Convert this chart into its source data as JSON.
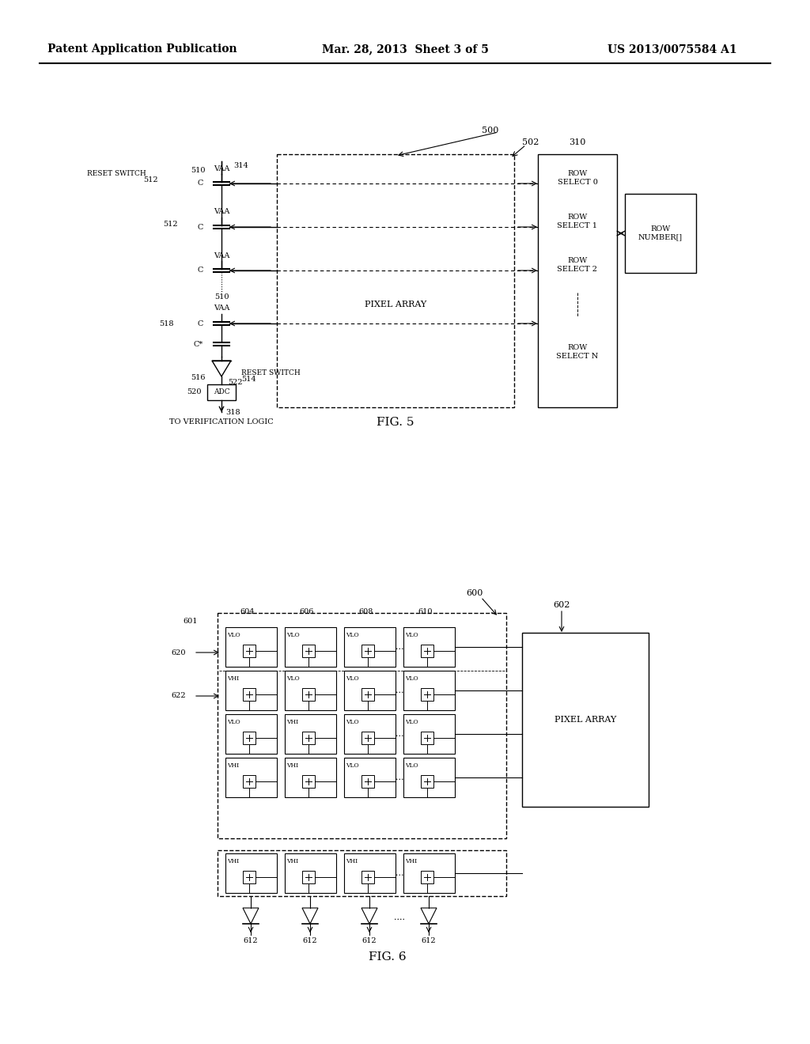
{
  "background_color": "#ffffff",
  "header": {
    "left": "Patent Application Publication",
    "center": "Mar. 28, 2013  Sheet 3 of 5",
    "right": "US 2013/0075584 A1",
    "fontsize": 11
  },
  "fig5": {
    "label": "FIG. 5",
    "ref_500": "500",
    "ref_502": "502",
    "ref_310": "310",
    "ref_314": "314",
    "ref_512_1": "512",
    "ref_512_2": "512",
    "ref_510_1": "510",
    "ref_510_2": "510",
    "ref_518": "518",
    "ref_516": "516",
    "ref_514": "514",
    "ref_522": "522",
    "ref_520": "520",
    "ref_318": "318"
  },
  "fig6": {
    "label": "FIG. 6",
    "ref_600": "600",
    "ref_602": "602",
    "ref_601": "601",
    "ref_620": "620",
    "ref_622": "622",
    "ref_604": "604",
    "ref_606": "606",
    "ref_608": "608",
    "ref_610": "610",
    "ref_612": "612"
  }
}
